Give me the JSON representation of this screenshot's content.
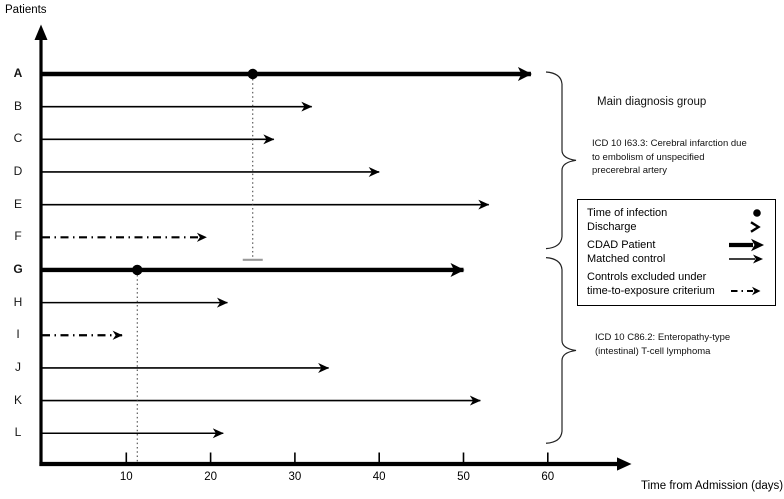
{
  "chart_data": {
    "type": "timeline",
    "title": "",
    "xlabel": "Time from Admission (days)",
    "ylabel": "Patients",
    "x_ticks": [
      10,
      20,
      30,
      40,
      50,
      60
    ],
    "xlim": [
      0,
      65
    ],
    "x_unit": "days since admission",
    "patients": [
      {
        "label": "A",
        "role": "cdad",
        "discharge_day": 58,
        "infection_day": 25
      },
      {
        "label": "B",
        "role": "control",
        "discharge_day": 32,
        "infection_day": null
      },
      {
        "label": "C",
        "role": "control",
        "discharge_day": 27.5,
        "infection_day": null
      },
      {
        "label": "D",
        "role": "control",
        "discharge_day": 40,
        "infection_day": null
      },
      {
        "label": "E",
        "role": "control",
        "discharge_day": 53,
        "infection_day": null
      },
      {
        "label": "F",
        "role": "excluded",
        "discharge_day": 19.5,
        "infection_day": null
      },
      {
        "label": "G",
        "role": "cdad",
        "discharge_day": 50,
        "infection_day": 11.3
      },
      {
        "label": "H",
        "role": "control",
        "discharge_day": 22,
        "infection_day": null
      },
      {
        "label": "I",
        "role": "excluded",
        "discharge_day": 9.5,
        "infection_day": null
      },
      {
        "label": "J",
        "role": "control",
        "discharge_day": 34,
        "infection_day": null
      },
      {
        "label": "K",
        "role": "control",
        "discharge_day": 52,
        "infection_day": null
      },
      {
        "label": "L",
        "role": "control",
        "discharge_day": 21.5,
        "infection_day": null
      }
    ],
    "annotations": {
      "main_diagnosis_heading": "Main diagnosis group"
    },
    "groups": [
      {
        "start_patient": "A",
        "end_patient": "F",
        "description": "ICD 10 I63.3: Cerebral infarction due to embolism of unspecified precerebral artery"
      },
      {
        "start_patient": "G",
        "end_patient": "L",
        "description": "ICD 10 C86.2: Enteropathy-type (intestinal) T-cell lymphoma"
      }
    ],
    "legend": [
      {
        "label": "Time of infection",
        "symbol": "dot"
      },
      {
        "label": "Discharge",
        "symbol": "arrowhead"
      },
      {
        "label": "CDAD Patient",
        "symbol": "thick-arrow"
      },
      {
        "label": "Matched control",
        "symbol": "thin-arrow"
      },
      {
        "label": "Controls excluded under time-to-exposure criterium",
        "symbol": "dash-dot-arrow"
      }
    ],
    "colors": {
      "ink": "#000000",
      "dropline": "#3a3a3a",
      "dropline_cap": "#999999",
      "background": "#ffffff"
    }
  }
}
